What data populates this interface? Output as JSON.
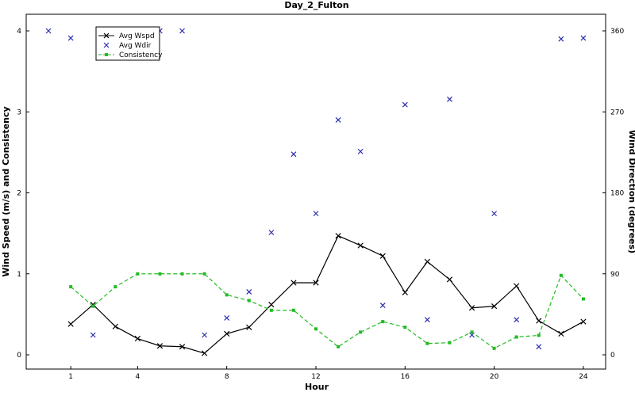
{
  "chart_data": {
    "type": "line",
    "title": "Day_2_Fulton",
    "xlabel": "Hour",
    "ylabel": "Wind Speed (m/s) and Consistency",
    "y2label": "Wind Direction (degrees)",
    "xlim": [
      -1,
      25
    ],
    "ylim": [
      0,
      4
    ],
    "y2lim": [
      0,
      360
    ],
    "xticks": [
      1,
      4,
      8,
      12,
      16,
      20,
      24
    ],
    "yticks": [
      0,
      1,
      2,
      3,
      4
    ],
    "y2ticks": [
      0,
      90,
      180,
      270,
      360
    ],
    "grid": false,
    "legend_position": "top-left",
    "series": [
      {
        "name": "Avg Wspd",
        "axis": "left",
        "style": "line-x",
        "color": "#000000",
        "x": [
          1,
          2,
          3,
          4,
          5,
          6,
          7,
          8,
          9,
          10,
          11,
          12,
          13,
          14,
          15,
          16,
          17,
          18,
          19,
          20,
          21,
          22,
          23,
          24
        ],
        "y": [
          0.38,
          0.62,
          0.35,
          0.2,
          0.11,
          0.1,
          0.02,
          0.26,
          0.34,
          0.62,
          0.89,
          0.89,
          1.47,
          1.35,
          1.22,
          0.77,
          1.15,
          0.93,
          0.58,
          0.6,
          0.85,
          0.42,
          0.26,
          0.41
        ]
      },
      {
        "name": "Avg Wdir",
        "axis": "right",
        "style": "marker-x",
        "color": "#2b2bb0",
        "x": [
          0,
          1,
          2,
          5,
          6,
          7,
          8,
          9,
          10,
          11,
          12,
          13,
          14,
          15,
          16,
          17,
          18,
          19,
          20,
          21,
          22,
          23,
          24
        ],
        "y": [
          360,
          352,
          22,
          360,
          360,
          22,
          41,
          70,
          136,
          223,
          157,
          261,
          226,
          55,
          278,
          39,
          284,
          22,
          157,
          39,
          9,
          351,
          352
        ]
      },
      {
        "name": "Consistency",
        "axis": "left",
        "style": "dashed-square",
        "color": "#22bb22",
        "x": [
          1,
          2,
          3,
          4,
          5,
          6,
          7,
          8,
          9,
          10,
          11,
          12,
          13,
          14,
          15,
          16,
          17,
          18,
          19,
          20,
          21,
          22,
          23,
          24
        ],
        "y": [
          0.84,
          0.6,
          0.84,
          1.0,
          1.0,
          1.0,
          1.0,
          0.74,
          0.67,
          0.55,
          0.55,
          0.32,
          0.1,
          0.28,
          0.41,
          0.34,
          0.14,
          0.15,
          0.28,
          0.08,
          0.22,
          0.24,
          0.98,
          0.69
        ]
      }
    ]
  }
}
